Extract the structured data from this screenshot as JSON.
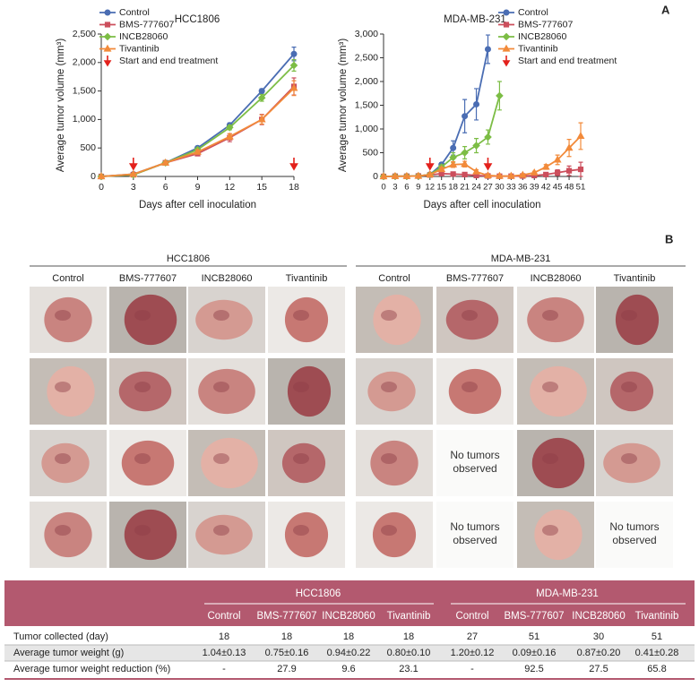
{
  "panel_labels": [
    "A",
    "B"
  ],
  "chart_data": [
    {
      "type": "line",
      "title": "HCC1806",
      "xlabel": "Days after cell inoculation",
      "ylabel": "Average tumor volume (mm³)",
      "x": [
        0,
        3,
        6,
        9,
        12,
        15,
        18
      ],
      "xlim": [
        0,
        18
      ],
      "xticks": [
        0,
        3,
        6,
        9,
        12,
        15,
        18
      ],
      "ylim": [
        0,
        2500
      ],
      "yticks": [
        0,
        500,
        {
          "value": 1000,
          "label": "1,000"
        },
        {
          "value": 1500,
          "label": "1,500"
        },
        {
          "value": 2000,
          "label": "2,000"
        },
        {
          "value": 2500,
          "label": "2,500"
        }
      ],
      "series": [
        {
          "name": "Control",
          "color": "#4a6db3",
          "marker": "circle",
          "values": [
            0,
            40,
            240,
            500,
            900,
            1500,
            2150
          ],
          "errors": [
            0,
            10,
            20,
            30,
            40,
            40,
            120
          ]
        },
        {
          "name": "BMS-777607",
          "color": "#cc4f5d",
          "marker": "square",
          "values": [
            0,
            30,
            240,
            400,
            680,
            1000,
            1580
          ],
          "errors": [
            0,
            10,
            20,
            30,
            70,
            90,
            150
          ]
        },
        {
          "name": "INCB28060",
          "color": "#7cbd45",
          "marker": "diamond",
          "values": [
            0,
            30,
            240,
            470,
            860,
            1380,
            1950
          ],
          "errors": [
            0,
            10,
            20,
            30,
            40,
            60,
            100
          ]
        },
        {
          "name": "Tivantinib",
          "color": "#f28a3a",
          "marker": "triangle",
          "values": [
            0,
            40,
            240,
            430,
            700,
            1000,
            1550
          ],
          "errors": [
            0,
            10,
            20,
            30,
            50,
            80,
            130
          ]
        }
      ],
      "treatment": {
        "label": "Start and end treatment",
        "color": "#e3211c",
        "x": [
          3,
          18
        ]
      }
    },
    {
      "type": "line",
      "title": "MDA-MB-231",
      "xlabel": "Days after cell inoculation",
      "ylabel": "Average tumor volume (mm³)",
      "x": [
        0,
        3,
        6,
        9,
        12,
        15,
        18,
        21,
        24,
        27,
        30,
        33,
        36,
        39,
        42,
        45,
        48,
        51
      ],
      "xlim": [
        0,
        51
      ],
      "xticks": [
        0,
        3,
        6,
        9,
        12,
        15,
        18,
        21,
        24,
        27,
        30,
        33,
        36,
        39,
        42,
        45,
        48,
        51
      ],
      "ylim": [
        0,
        3000
      ],
      "yticks": [
        0,
        500,
        {
          "value": 1000,
          "label": "1,000"
        },
        {
          "value": 1500,
          "label": "1,500"
        },
        {
          "value": 2000,
          "label": "2,000"
        },
        {
          "value": 2500,
          "label": "2,500"
        },
        {
          "value": 3000,
          "label": "3,000"
        }
      ],
      "series": [
        {
          "name": "Control",
          "color": "#4a6db3",
          "marker": "circle",
          "values": [
            0,
            5,
            5,
            10,
            40,
            250,
            600,
            1270,
            1520,
            2680,
            null,
            null,
            null,
            null,
            null,
            null,
            null,
            null
          ],
          "errors": [
            0,
            5,
            5,
            5,
            15,
            40,
            150,
            350,
            330,
            300,
            null,
            null,
            null,
            null,
            null,
            null,
            null,
            null
          ]
        },
        {
          "name": "BMS-777607",
          "color": "#cc4f5d",
          "marker": "square",
          "values": [
            0,
            5,
            5,
            10,
            30,
            60,
            50,
            40,
            20,
            10,
            5,
            5,
            10,
            20,
            40,
            80,
            120,
            150
          ],
          "errors": [
            0,
            5,
            5,
            5,
            10,
            20,
            20,
            20,
            10,
            5,
            5,
            5,
            10,
            20,
            30,
            60,
            100,
            150
          ]
        },
        {
          "name": "INCB28060",
          "color": "#7cbd45",
          "marker": "diamond",
          "values": [
            0,
            5,
            5,
            10,
            40,
            200,
            400,
            500,
            650,
            830,
            1700,
            null,
            null,
            null,
            null,
            null,
            null,
            null
          ],
          "errors": [
            0,
            5,
            5,
            5,
            15,
            40,
            100,
            130,
            150,
            150,
            300,
            null,
            null,
            null,
            null,
            null,
            null,
            null
          ]
        },
        {
          "name": "Tivantinib",
          "color": "#f28a3a",
          "marker": "triangle",
          "values": [
            0,
            5,
            5,
            10,
            40,
            150,
            250,
            260,
            100,
            20,
            10,
            10,
            30,
            80,
            200,
            350,
            600,
            850
          ],
          "errors": [
            0,
            5,
            5,
            5,
            15,
            40,
            60,
            60,
            40,
            10,
            5,
            5,
            10,
            30,
            50,
            100,
            180,
            280
          ]
        }
      ],
      "treatment": {
        "label": "Start and end treatment",
        "color": "#e3211c",
        "x": [
          12,
          27
        ]
      }
    }
  ],
  "photos": {
    "groups": [
      {
        "title": "HCC1806",
        "columns": [
          "Control",
          "BMS-777607",
          "INCB28060",
          "Tivantinib"
        ],
        "rows": [
          [
            null,
            null,
            null,
            null
          ],
          [
            null,
            null,
            null,
            null
          ],
          [
            null,
            null,
            null,
            null
          ],
          [
            null,
            null,
            null,
            null
          ]
        ]
      },
      {
        "title": "MDA-MB-231",
        "columns": [
          "Control",
          "BMS-777607",
          "INCB28060",
          "Tivantinib"
        ],
        "rows": [
          [
            null,
            null,
            null,
            null
          ],
          [
            null,
            null,
            null,
            null
          ],
          [
            null,
            "No tumors observed",
            null,
            null
          ],
          [
            null,
            "No tumors observed",
            null,
            "No tumors observed"
          ]
        ]
      }
    ]
  },
  "table": {
    "groups": [
      {
        "title": "HCC1806",
        "columns": [
          "Control",
          "BMS-777607",
          "INCB28060",
          "Tivantinib"
        ]
      },
      {
        "title": "MDA-MB-231",
        "columns": [
          "Control",
          "BMS-777607",
          "INCB28060",
          "Tivantinib"
        ]
      }
    ],
    "rows": [
      {
        "label": "Tumor collected (day)",
        "cells": [
          "18",
          "18",
          "18",
          "18",
          "27",
          "51",
          "30",
          "51"
        ]
      },
      {
        "label": "Average tumor weight (g)",
        "cells": [
          "1.04±0.13",
          "0.75±0.16",
          "0.94±0.22",
          "0.80±0.10",
          "1.20±0.12",
          "0.09±0.16",
          "0.87±0.20",
          "0.41±0.28"
        ]
      },
      {
        "label": "Average tumor weight reduction (%)",
        "cells": [
          "-",
          "27.9",
          "9.6",
          "23.1",
          "-",
          "92.5",
          "27.5",
          "65.8"
        ]
      }
    ]
  }
}
